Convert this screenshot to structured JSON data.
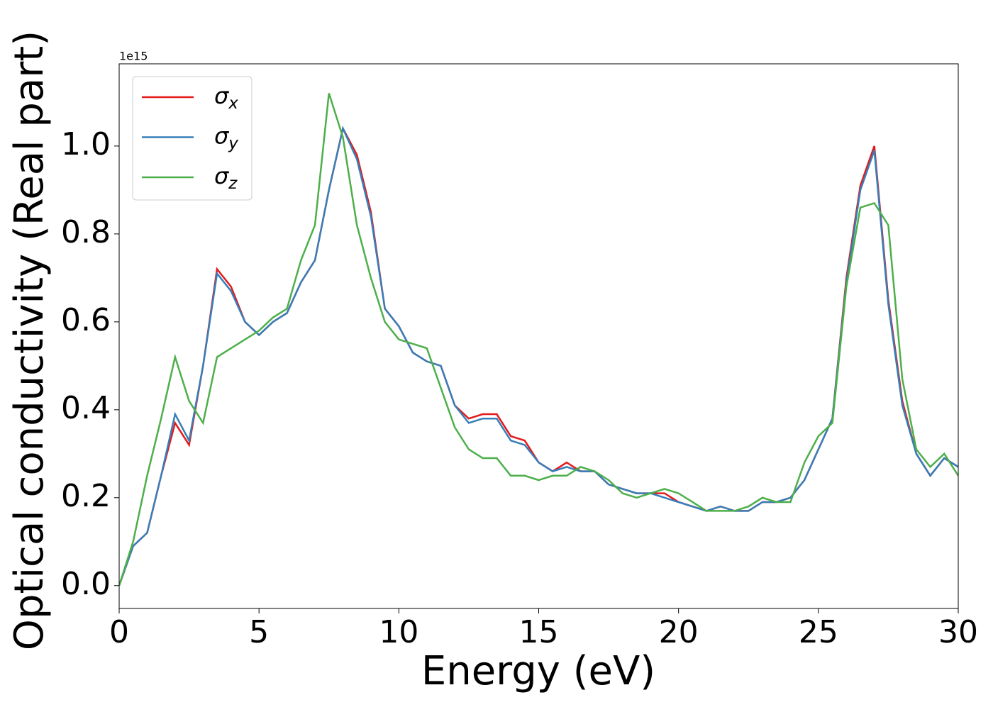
{
  "chart_data": {
    "type": "line",
    "x_label": "Energy (eV)",
    "y_label": "Optical conductivity (Real part)",
    "y_offset_label": "1e15",
    "x": [
      0,
      0.5,
      1,
      1.5,
      2,
      2.5,
      3,
      3.5,
      4,
      4.5,
      5,
      5.5,
      6,
      6.5,
      7,
      7.5,
      8,
      8.5,
      9,
      9.5,
      10,
      10.5,
      11,
      11.5,
      12,
      12.5,
      13,
      13.5,
      14,
      14.5,
      15,
      15.5,
      16,
      16.5,
      17,
      17.5,
      18,
      18.5,
      19,
      19.5,
      20,
      20.5,
      21,
      21.5,
      22,
      22.5,
      23,
      23.5,
      24,
      24.5,
      25,
      25.5,
      26,
      26.5,
      27,
      27.5,
      28,
      28.5,
      29,
      29.5,
      30
    ],
    "series": [
      {
        "name": "σx",
        "color": "#e41a1c",
        "values": [
          0,
          0.09,
          0.12,
          0.25,
          0.37,
          0.32,
          0.5,
          0.72,
          0.68,
          0.6,
          0.57,
          0.6,
          0.62,
          0.69,
          0.74,
          0.9,
          1.04,
          0.98,
          0.85,
          0.63,
          0.59,
          0.53,
          0.51,
          0.5,
          0.41,
          0.38,
          0.39,
          0.39,
          0.34,
          0.33,
          0.28,
          0.26,
          0.28,
          0.26,
          0.26,
          0.23,
          0.22,
          0.21,
          0.21,
          0.21,
          0.19,
          0.18,
          0.17,
          0.18,
          0.17,
          0.17,
          0.19,
          0.19,
          0.2,
          0.24,
          0.31,
          0.38,
          0.7,
          0.91,
          1.0,
          0.65,
          0.42,
          0.3,
          0.25,
          0.29,
          0.27
        ]
      },
      {
        "name": "σy",
        "color": "#377eb8",
        "values": [
          0,
          0.09,
          0.12,
          0.25,
          0.39,
          0.33,
          0.5,
          0.71,
          0.67,
          0.6,
          0.57,
          0.6,
          0.62,
          0.69,
          0.74,
          0.9,
          1.04,
          0.97,
          0.84,
          0.63,
          0.59,
          0.53,
          0.51,
          0.5,
          0.41,
          0.37,
          0.38,
          0.38,
          0.33,
          0.32,
          0.28,
          0.26,
          0.27,
          0.26,
          0.26,
          0.23,
          0.22,
          0.21,
          0.21,
          0.2,
          0.19,
          0.18,
          0.17,
          0.18,
          0.17,
          0.17,
          0.19,
          0.19,
          0.2,
          0.24,
          0.31,
          0.38,
          0.69,
          0.9,
          0.99,
          0.64,
          0.41,
          0.3,
          0.25,
          0.29,
          0.27
        ]
      },
      {
        "name": "σz",
        "color": "#4daf4a",
        "values": [
          0,
          0.1,
          0.25,
          0.38,
          0.52,
          0.42,
          0.37,
          0.52,
          0.54,
          0.56,
          0.58,
          0.61,
          0.63,
          0.74,
          0.82,
          1.12,
          1.02,
          0.82,
          0.7,
          0.6,
          0.56,
          0.55,
          0.54,
          0.45,
          0.36,
          0.31,
          0.29,
          0.29,
          0.25,
          0.25,
          0.24,
          0.25,
          0.25,
          0.27,
          0.26,
          0.24,
          0.21,
          0.2,
          0.21,
          0.22,
          0.21,
          0.19,
          0.17,
          0.17,
          0.17,
          0.18,
          0.2,
          0.19,
          0.19,
          0.28,
          0.34,
          0.37,
          0.68,
          0.86,
          0.87,
          0.82,
          0.47,
          0.31,
          0.27,
          0.3,
          0.25
        ]
      }
    ],
    "xlim": [
      0,
      30
    ],
    "xticks": [
      0,
      5,
      10,
      15,
      20,
      25,
      30
    ],
    "ylim": [
      -0.052,
      1.187
    ],
    "yticks": [
      {
        "value": 0,
        "label": "0.0"
      },
      {
        "value": 0.2,
        "label": "0.2"
      },
      {
        "value": 0.4,
        "label": "0.4"
      },
      {
        "value": 0.6,
        "label": "0.6"
      },
      {
        "value": 0.8,
        "label": "0.8"
      },
      {
        "value": 1,
        "label": "1.0"
      }
    ],
    "legend": "upper left",
    "grid": false
  }
}
